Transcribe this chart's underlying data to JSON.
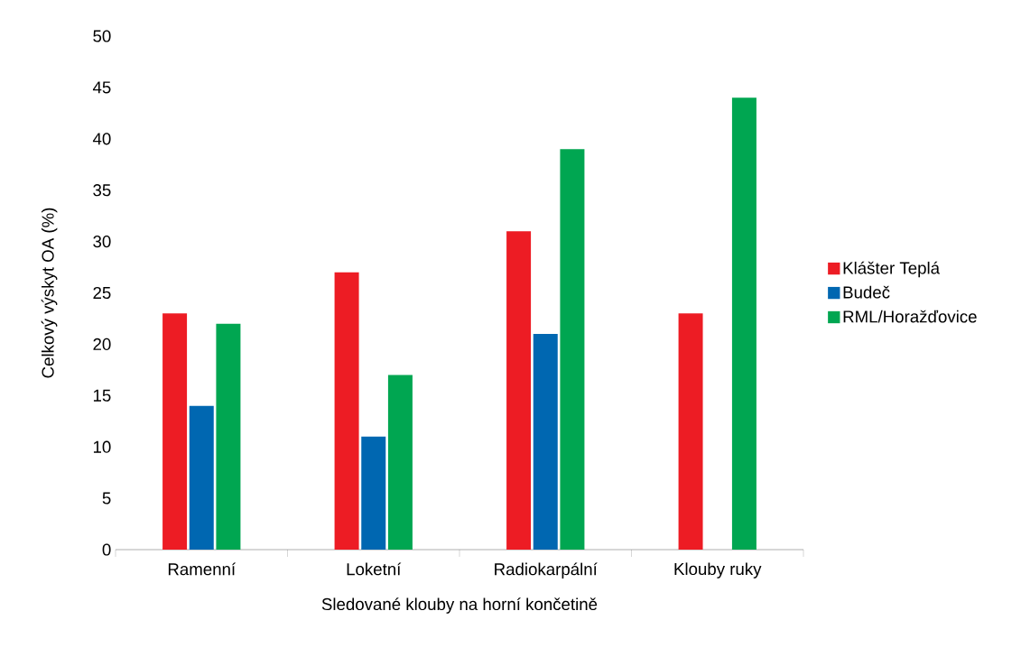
{
  "chart_data": {
    "type": "bar",
    "xlabel": "Sledované klouby na horní končetině",
    "ylabel": "Celkový výskyt OA (%)",
    "categories": [
      "Ramenní",
      "Loketní",
      "Radiokarpální",
      "Klouby ruky"
    ],
    "series": [
      {
        "name": "Klášter Teplá",
        "color": "#ed1c24",
        "values": [
          23,
          27,
          31,
          23
        ]
      },
      {
        "name": "Budeč",
        "color": "#0067b1",
        "values": [
          14,
          11,
          21,
          null
        ]
      },
      {
        "name": "RML/Horažďovice",
        "color": "#00a651",
        "values": [
          22,
          17,
          39,
          44
        ]
      }
    ],
    "ylim": [
      0,
      50
    ],
    "yticks": [
      0,
      5,
      10,
      15,
      20,
      25,
      30,
      35,
      40,
      45,
      50
    ],
    "grid": false,
    "legend": "right"
  }
}
